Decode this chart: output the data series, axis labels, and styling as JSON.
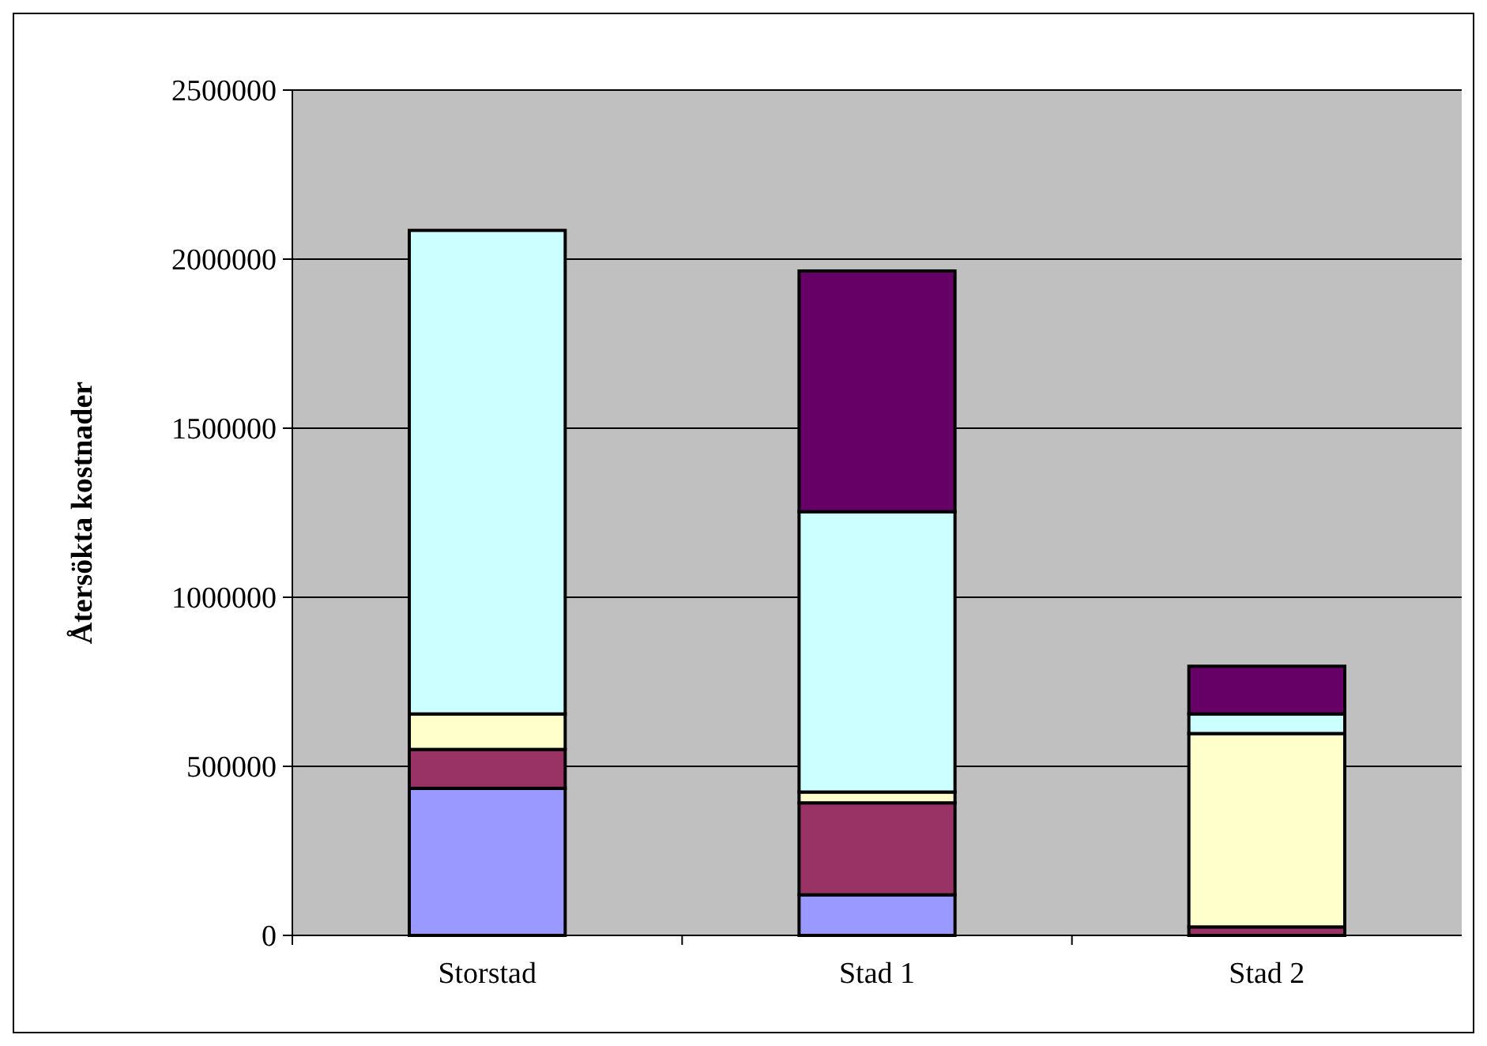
{
  "chart_data": {
    "type": "bar",
    "stacked": true,
    "ylabel": "Återsökta kostnader",
    "categories": [
      "Storstad",
      "Stad 1",
      "Stad 2"
    ],
    "series": [
      {
        "color": "#9999ff",
        "values": [
          435000,
          120000,
          0
        ]
      },
      {
        "color": "#993366",
        "values": [
          115000,
          272000,
          25000
        ]
      },
      {
        "color": "#ffffcc",
        "values": [
          105000,
          32000,
          572000
        ]
      },
      {
        "color": "#ccffff",
        "values": [
          1430000,
          829000,
          58000
        ]
      },
      {
        "color": "#660066",
        "values": [
          0,
          712000,
          141000
        ]
      }
    ],
    "ylim": [
      0,
      2500000
    ],
    "yticks": [
      0,
      500000,
      1000000,
      1500000,
      2000000,
      2500000
    ],
    "grid": "y"
  }
}
